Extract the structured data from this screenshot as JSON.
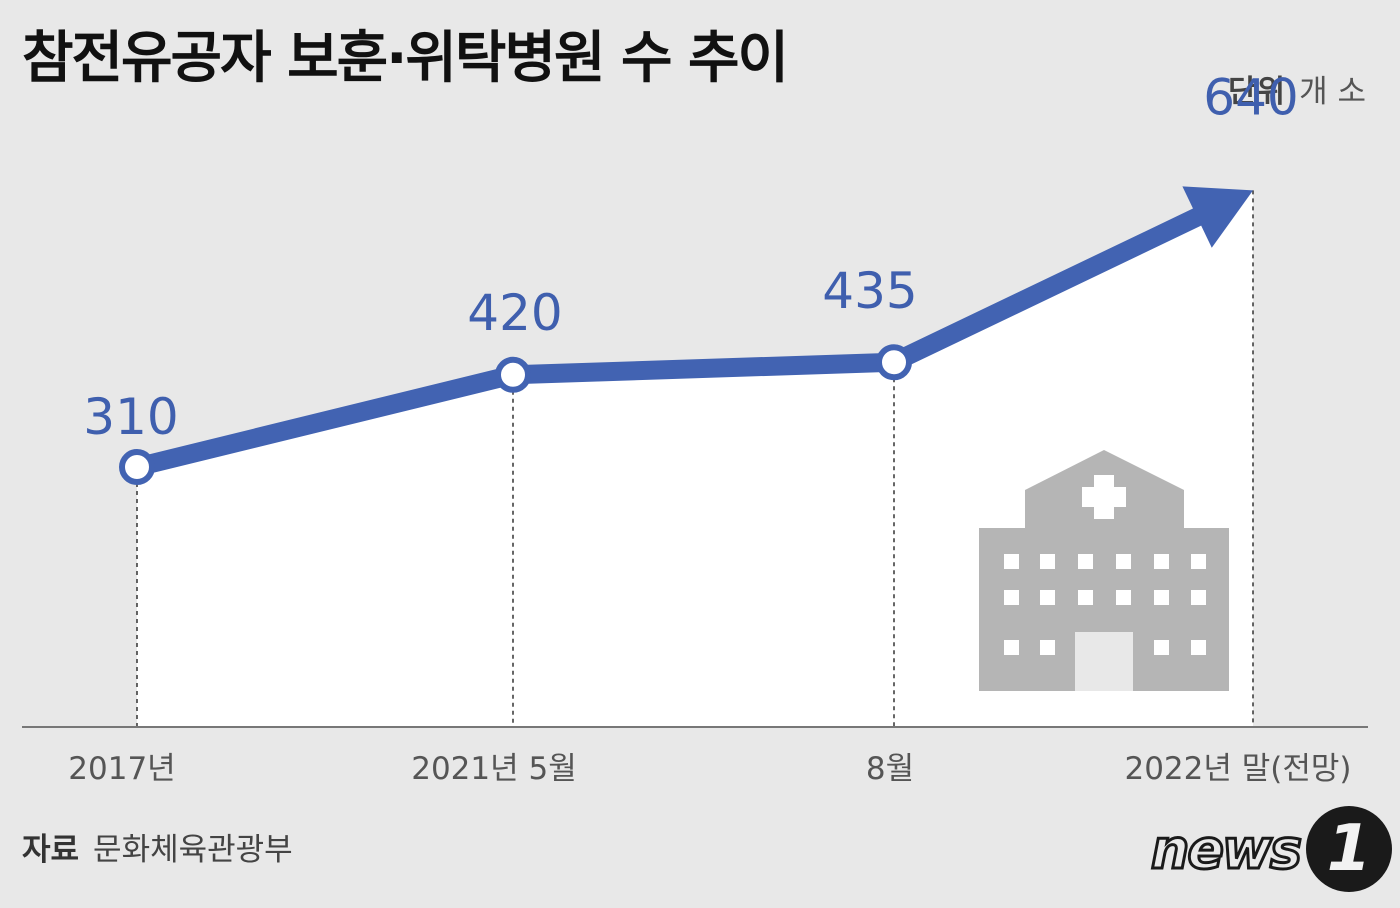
{
  "title": "참전유공자 보훈·위탁병원 수 추이",
  "unit": {
    "label": "단위",
    "value": "개 소"
  },
  "source": {
    "label": "자료",
    "value": "문화체육관광부"
  },
  "logo": {
    "text": "news",
    "badge": "1"
  },
  "colors": {
    "line": "#4263b2",
    "value_text": "#3f5fae",
    "fill": "#ffffff",
    "building": "#b5b5b5",
    "background": "#e8e8e8"
  },
  "icon": "hospital-icon",
  "chart_data": {
    "type": "line",
    "categories": [
      "2017년",
      "2021년 5월",
      "8월",
      "2022년 말(전망)"
    ],
    "values": [
      310,
      420,
      435,
      640
    ],
    "ylim": [
      0,
      700
    ],
    "grid": false,
    "final_point_marker": "arrow"
  }
}
